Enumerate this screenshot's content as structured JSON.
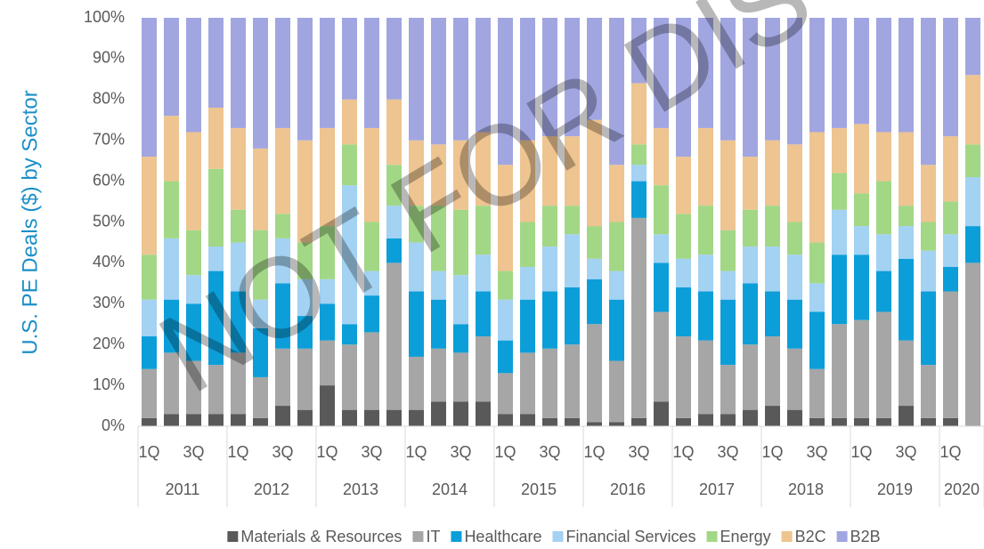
{
  "chart_data": {
    "type": "stacked_bar_100",
    "y_axis_label": "U.S. PE Deals ($) by Sector",
    "watermark": "NOT FOR DIS",
    "categories": [
      "1Q",
      null,
      "3Q",
      null,
      "1Q",
      null,
      "3Q",
      null,
      "1Q",
      null,
      "3Q",
      null,
      "1Q",
      null,
      "3Q",
      null,
      "1Q",
      null,
      "3Q",
      null,
      "1Q",
      null,
      "3Q",
      null,
      "1Q",
      null,
      "3Q",
      null,
      "1Q",
      null,
      "3Q",
      null,
      "1Q",
      null,
      "3Q",
      null,
      "1Q",
      null
    ],
    "years": [
      "2011",
      "2012",
      "2013",
      "2014",
      "2015",
      "2016",
      "2017",
      "2018",
      "2019",
      "2020"
    ],
    "ylim": [
      0,
      100
    ],
    "yticks": [
      {
        "value": 0,
        "label": "0%"
      },
      {
        "value": 10,
        "label": "10%"
      },
      {
        "value": 20,
        "label": "20%"
      },
      {
        "value": 30,
        "label": "30%"
      },
      {
        "value": 40,
        "label": "40%"
      },
      {
        "value": 50,
        "label": "50%"
      },
      {
        "value": 60,
        "label": "60%"
      },
      {
        "value": 70,
        "label": "70%"
      },
      {
        "value": 80,
        "label": "80%"
      },
      {
        "value": 90,
        "label": "90%"
      },
      {
        "value": 100,
        "label": "100%"
      }
    ],
    "legend": "bottom",
    "series": [
      {
        "name": "Materials & Resources",
        "color": "#595959",
        "values": [
          2,
          3,
          3,
          3,
          3,
          2,
          5,
          4,
          10,
          4,
          4,
          4,
          4,
          6,
          6,
          6,
          3,
          3,
          2,
          2,
          1,
          1,
          2,
          6,
          2,
          3,
          3,
          4,
          5,
          4,
          2,
          2,
          2,
          2,
          5,
          2,
          2,
          0
        ]
      },
      {
        "name": "IT",
        "color": "#a6a6a6",
        "values": [
          12,
          15,
          13,
          12,
          15,
          10,
          14,
          15,
          11,
          16,
          19,
          36,
          13,
          13,
          12,
          16,
          10,
          15,
          17,
          18,
          24,
          15,
          49,
          22,
          20,
          18,
          12,
          16,
          17,
          15,
          12,
          23,
          24,
          26,
          16,
          13,
          31,
          40
        ]
      },
      {
        "name": "Healthcare",
        "color": "#0c9ed9",
        "values": [
          8,
          13,
          14,
          23,
          15,
          12,
          16,
          8,
          9,
          5,
          9,
          6,
          16,
          12,
          7,
          11,
          8,
          13,
          14,
          14,
          11,
          15,
          9,
          12,
          12,
          12,
          16,
          15,
          11,
          12,
          14,
          17,
          16,
          10,
          20,
          18,
          6,
          9
        ]
      },
      {
        "name": "Financial Services",
        "color": "#a3d2f2",
        "values": [
          9,
          15,
          7,
          6,
          12,
          7,
          11,
          9,
          6,
          34,
          6,
          8,
          12,
          7,
          12,
          9,
          10,
          8,
          11,
          13,
          5,
          7,
          4,
          7,
          7,
          9,
          7,
          9,
          11,
          11,
          7,
          11,
          7,
          9,
          8,
          10,
          8,
          12
        ]
      },
      {
        "name": "Energy",
        "color": "#a2d786",
        "values": [
          11,
          14,
          11,
          19,
          8,
          17,
          6,
          9,
          13,
          10,
          12,
          10,
          9,
          16,
          16,
          12,
          7,
          11,
          10,
          7,
          8,
          12,
          5,
          12,
          11,
          12,
          10,
          9,
          10,
          8,
          10,
          9,
          8,
          13,
          5,
          7,
          8,
          8
        ]
      },
      {
        "name": "B2C",
        "color": "#eec491",
        "values": [
          24,
          16,
          24,
          15,
          20,
          20,
          21,
          25,
          24,
          11,
          23,
          16,
          16,
          15,
          17,
          18,
          26,
          20,
          17,
          17,
          26,
          14,
          15,
          14,
          14,
          19,
          22,
          13,
          16,
          19,
          27,
          11,
          17,
          12,
          18,
          14,
          16,
          17
        ]
      },
      {
        "name": "B2B",
        "color": "#a1a6e0",
        "values": [
          34,
          24,
          28,
          22,
          27,
          32,
          27,
          30,
          27,
          20,
          27,
          20,
          30,
          31,
          30,
          28,
          36,
          30,
          29,
          29,
          25,
          36,
          16,
          27,
          34,
          27,
          30,
          34,
          30,
          31,
          28,
          27,
          26,
          28,
          28,
          36,
          29,
          14
        ]
      }
    ]
  }
}
